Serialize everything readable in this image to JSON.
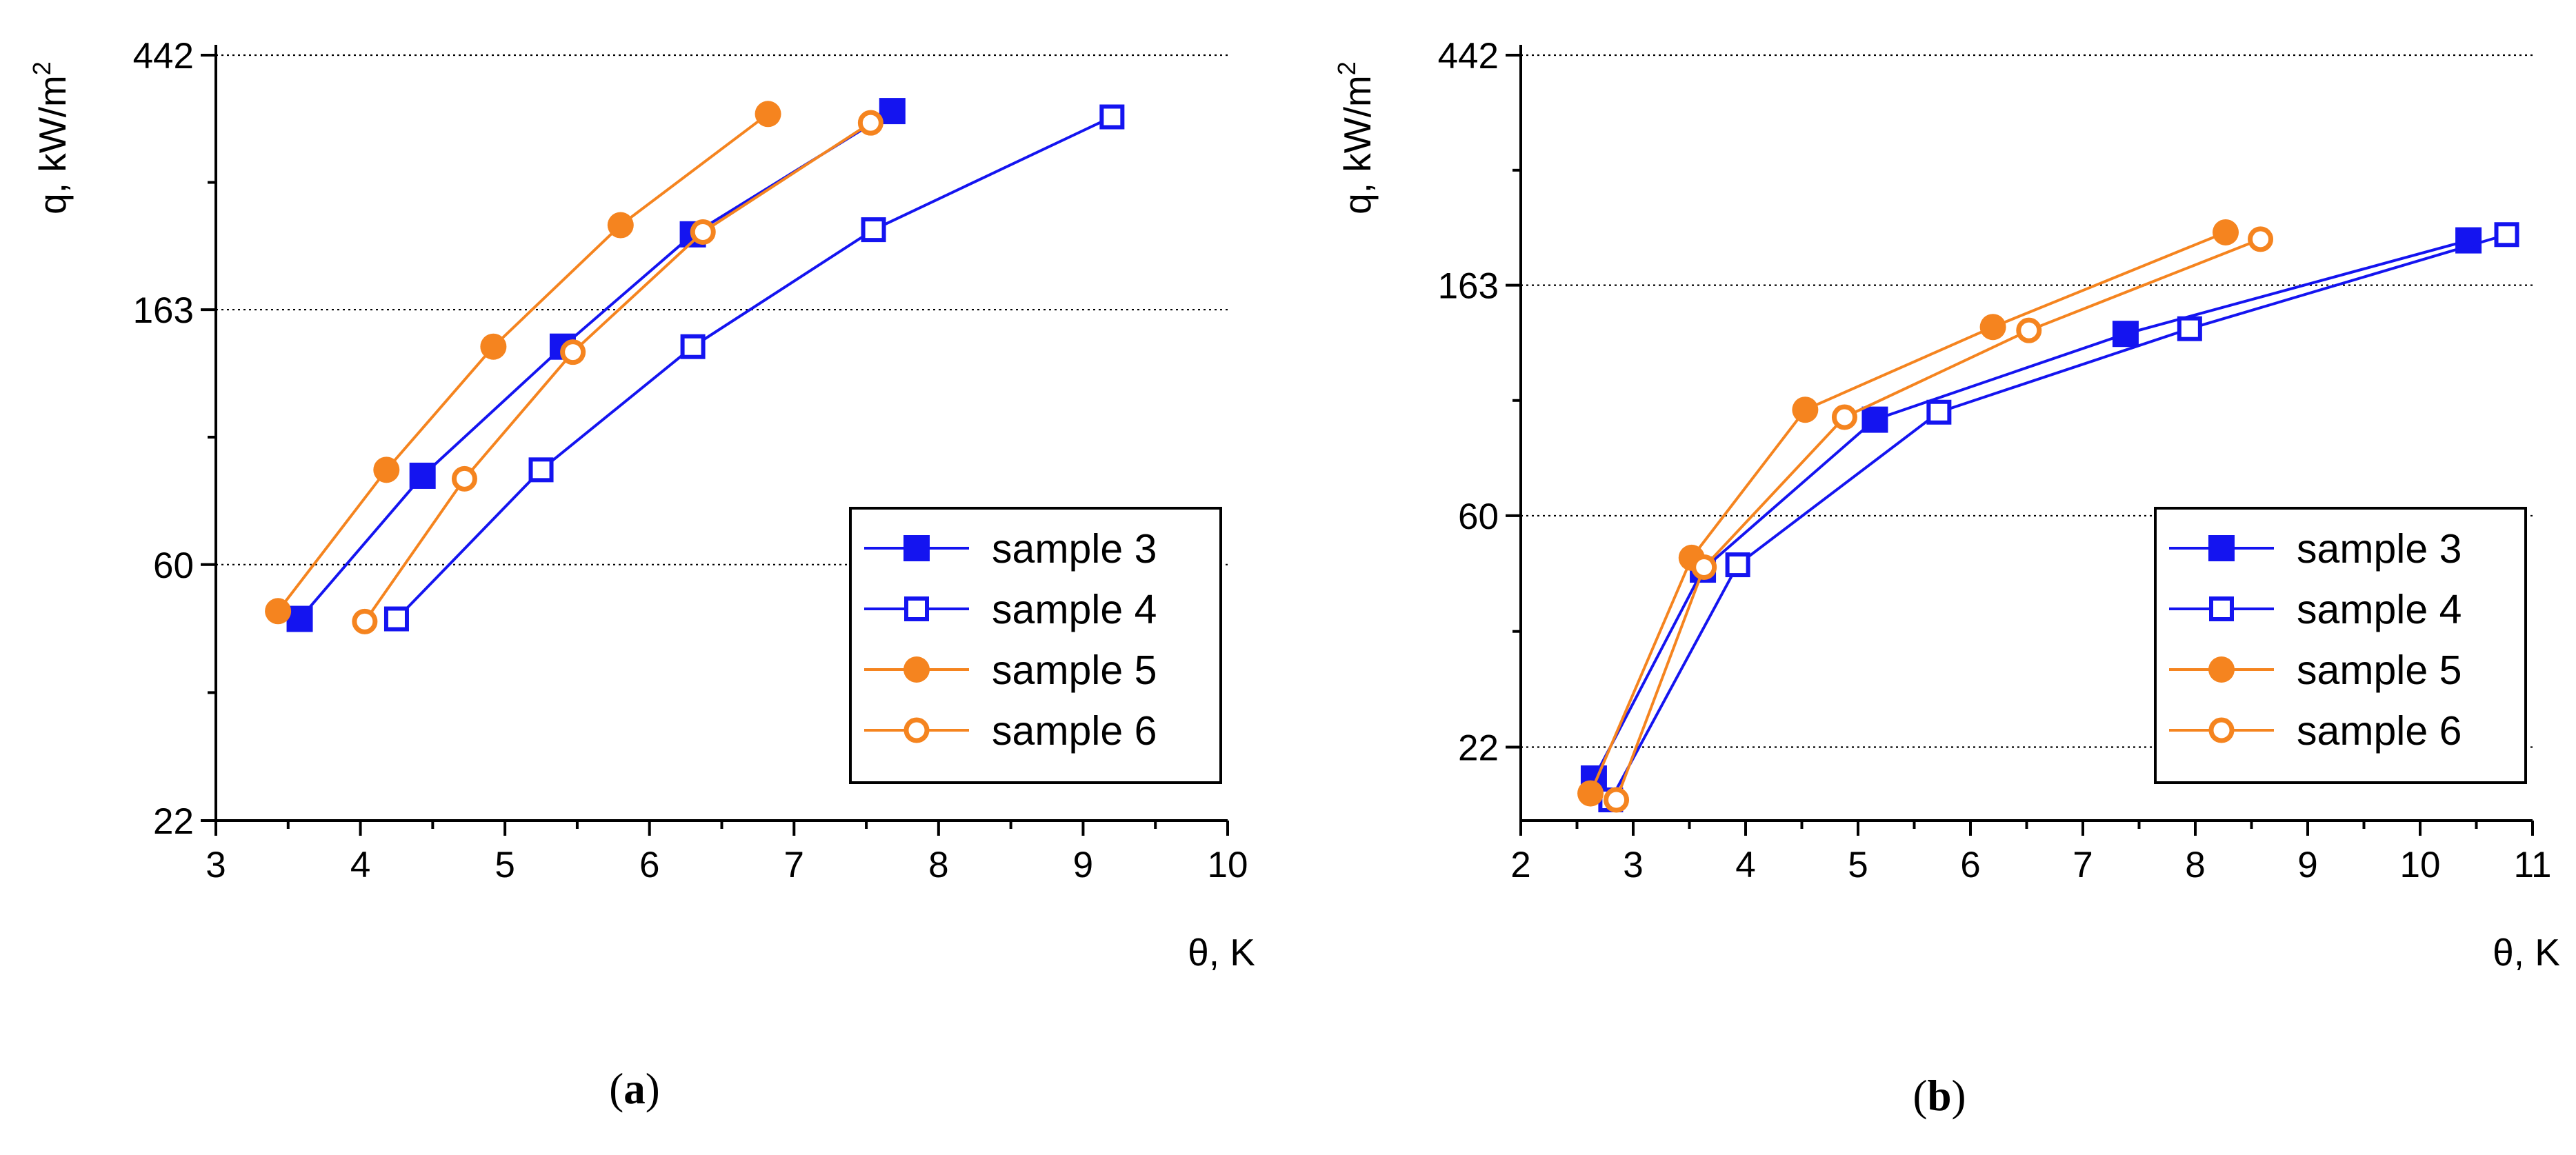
{
  "colors": {
    "blue": "#1414F0",
    "orange": "#F5841F",
    "axis": "#000000",
    "grid": "#000000"
  },
  "chart_data": [
    {
      "type": "line",
      "panel_label": "a",
      "xlabel": "θ, K",
      "ylabel": "q, kW/m",
      "ylabel_sup": "2",
      "yscale": "log",
      "xlim": [
        3,
        10
      ],
      "ylim": [
        22,
        442
      ],
      "xticks": [
        3,
        4,
        5,
        6,
        7,
        8,
        9,
        10
      ],
      "yticks": [
        22,
        60,
        163,
        442
      ],
      "y_gridlines": [
        60,
        163,
        442
      ],
      "legend_position": "lower-right",
      "series": [
        {
          "name": "sample 3",
          "color": "blue",
          "marker": "square",
          "filled": true,
          "x": [
            3.58,
            4.43,
            5.4,
            6.3,
            7.68
          ],
          "y": [
            48.5,
            85,
            141,
            219,
            355
          ]
        },
        {
          "name": "sample 4",
          "color": "blue",
          "marker": "square",
          "filled": false,
          "x": [
            4.25,
            5.25,
            6.3,
            7.55,
            9.2
          ],
          "y": [
            48.5,
            87,
            141,
            223,
            347
          ]
        },
        {
          "name": "sample 5",
          "color": "orange",
          "marker": "circle",
          "filled": true,
          "x": [
            3.43,
            4.18,
            4.92,
            5.8,
            6.82
          ],
          "y": [
            50,
            87,
            141,
            227,
            351
          ]
        },
        {
          "name": "sample 6",
          "color": "orange",
          "marker": "circle",
          "filled": false,
          "x": [
            4.03,
            4.72,
            5.47,
            6.37,
            7.53
          ],
          "y": [
            48,
            84,
            138,
            221,
            339
          ]
        }
      ]
    },
    {
      "type": "line",
      "panel_label": "b",
      "xlabel": "θ, K",
      "ylabel": "q, kW/m",
      "ylabel_sup": "2",
      "yscale": "log",
      "xlim": [
        2,
        11
      ],
      "ylim": [
        16,
        442
      ],
      "xticks": [
        2,
        3,
        4,
        5,
        6,
        7,
        8,
        9,
        10,
        11
      ],
      "yticks": [
        22,
        60,
        163,
        442
      ],
      "y_gridlines": [
        22,
        60,
        163,
        442
      ],
      "legend_position": "lower-right",
      "series": [
        {
          "name": "sample 3",
          "color": "blue",
          "marker": "square",
          "filled": true,
          "x": [
            2.65,
            3.62,
            5.15,
            7.38,
            10.43
          ],
          "y": [
            19.2,
            47.5,
            91,
            132,
            198
          ]
        },
        {
          "name": "sample 4",
          "color": "blue",
          "marker": "square",
          "filled": false,
          "x": [
            2.8,
            3.93,
            5.72,
            7.95,
            10.77
          ],
          "y": [
            17.5,
            48.5,
            94,
            135,
            203
          ]
        },
        {
          "name": "sample 5",
          "color": "orange",
          "marker": "circle",
          "filled": true,
          "x": [
            2.62,
            3.52,
            4.53,
            6.2,
            8.27
          ],
          "y": [
            18,
            50,
            95,
            136,
            205
          ]
        },
        {
          "name": "sample 6",
          "color": "orange",
          "marker": "circle",
          "filled": false,
          "x": [
            2.85,
            3.63,
            4.88,
            6.52,
            8.58
          ],
          "y": [
            17.5,
            48,
            92,
            134,
            199
          ]
        }
      ]
    }
  ]
}
